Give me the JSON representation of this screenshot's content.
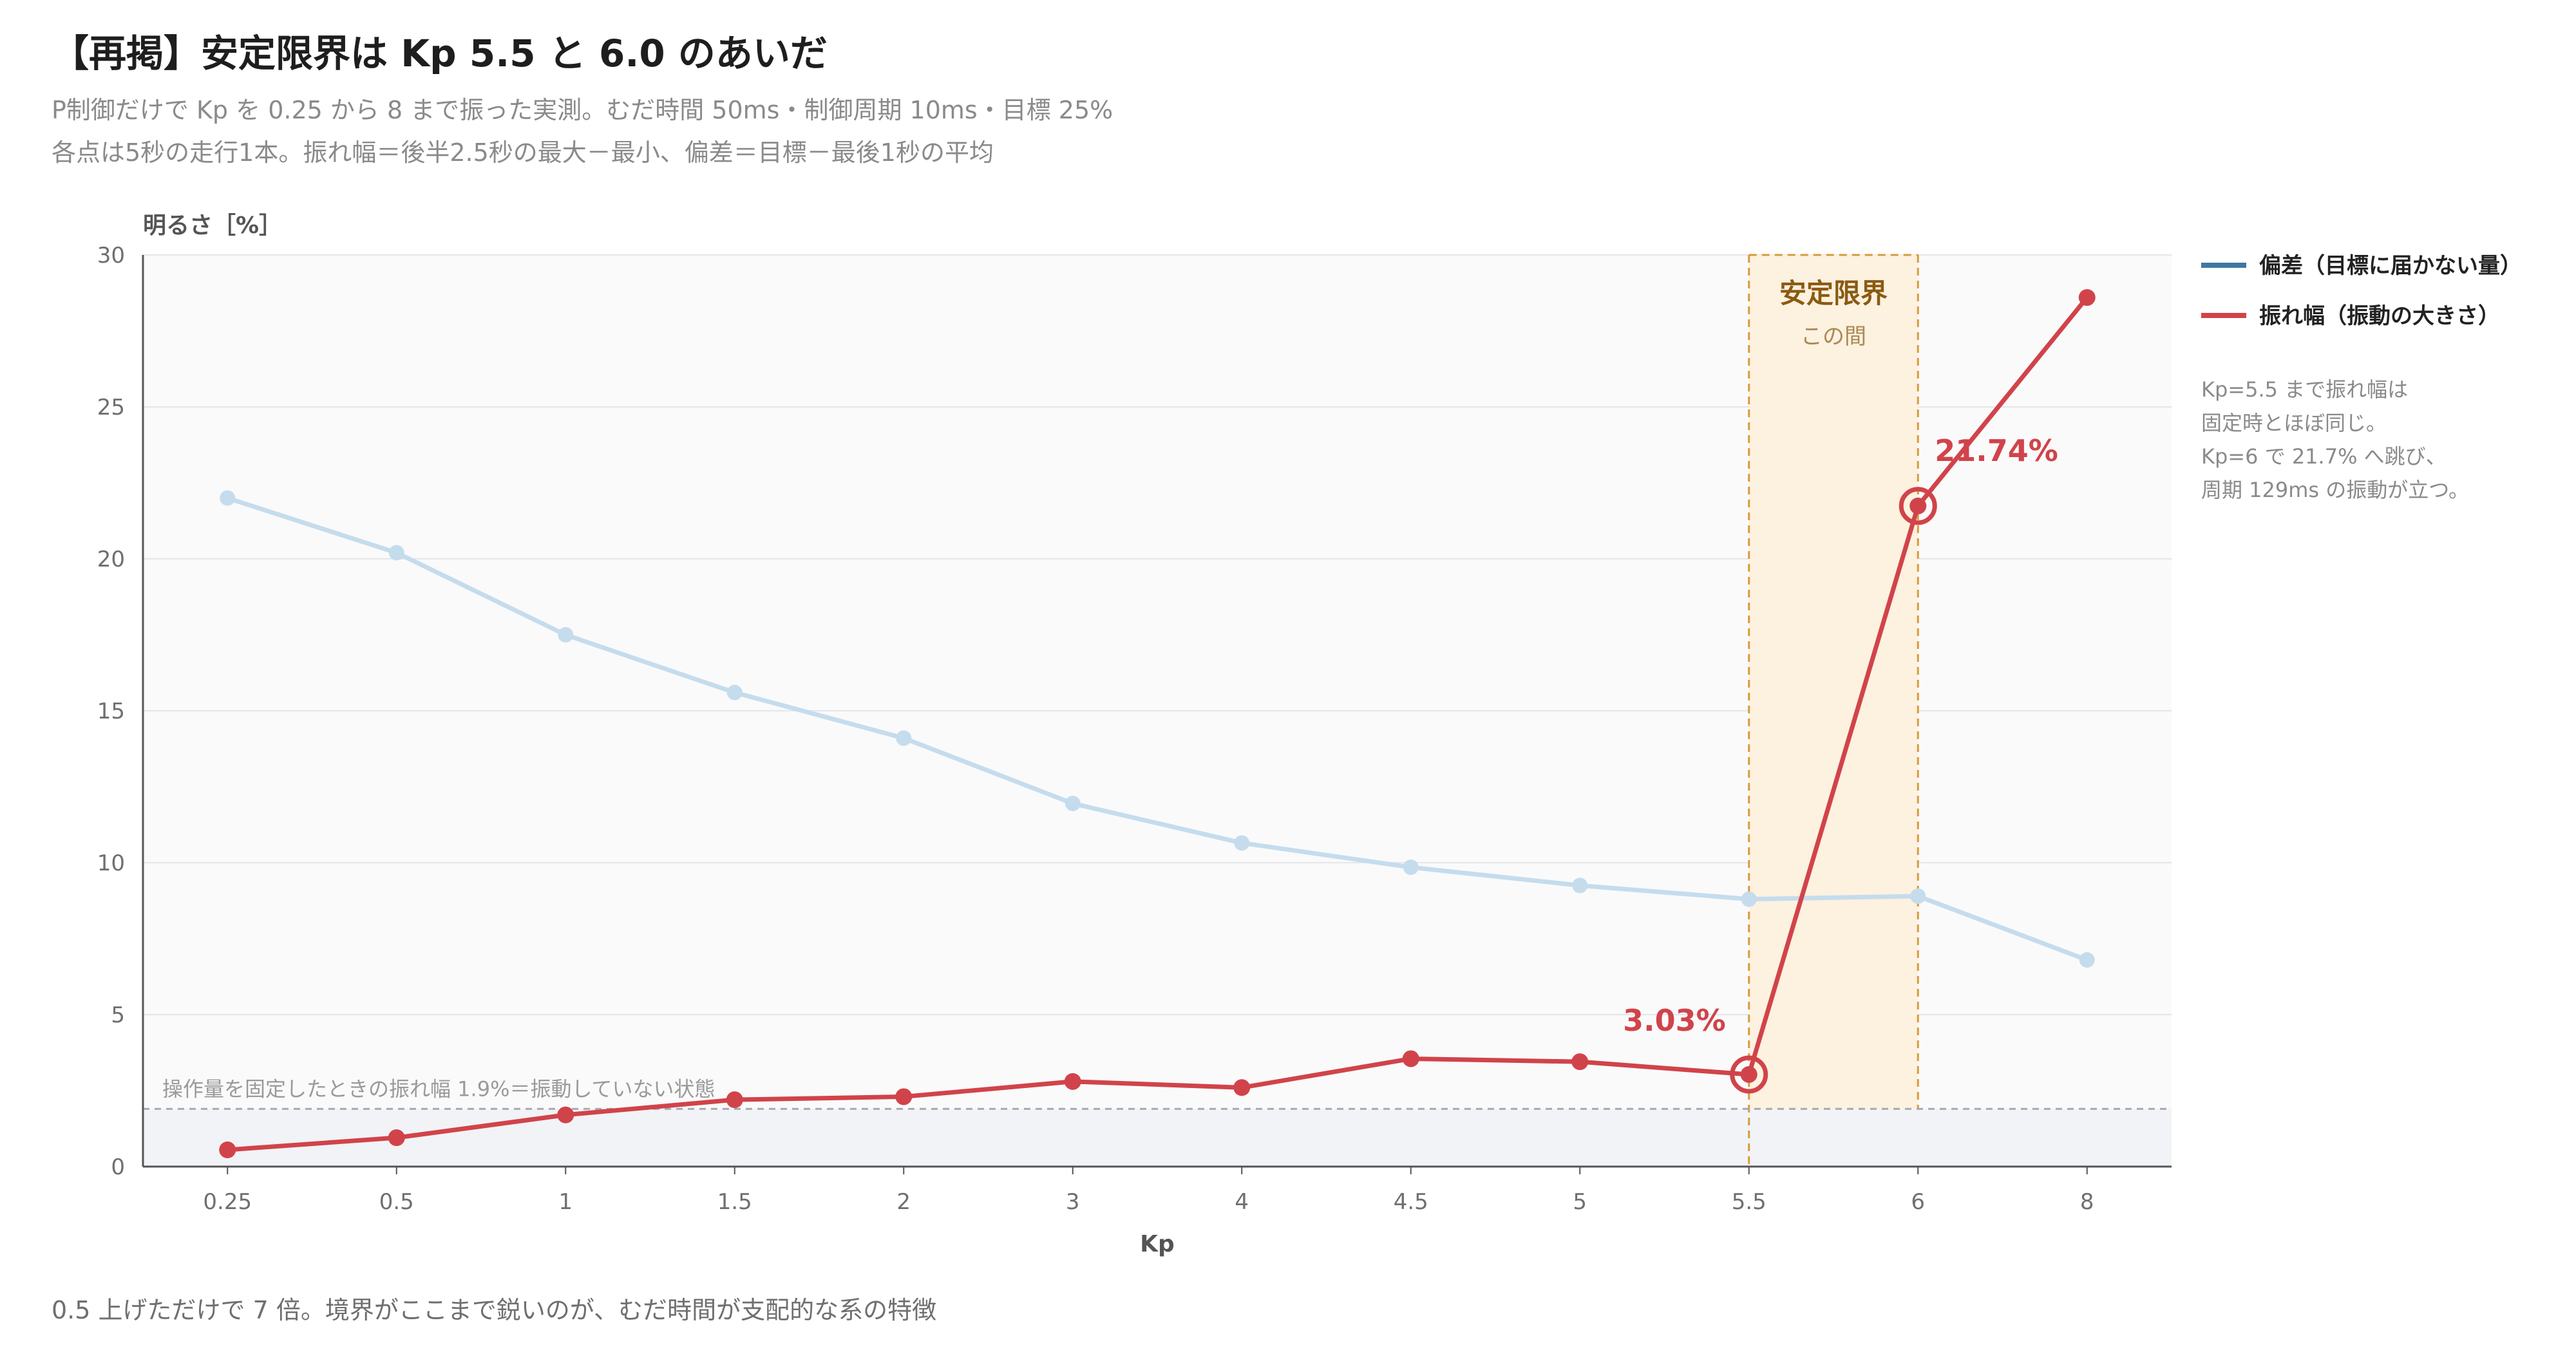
{
  "header": {
    "title": "【再掲】安定限界は Kp 5.5 と 6.0 のあいだ",
    "subtitle_line1": "P制御だけで Kp を 0.25 から 8 まで振った実測。むだ時間 50ms・制御周期 10ms・目標 25%",
    "subtitle_line2": "各点は5秒の走行1本。振れ幅＝後半2.5秒の最大－最小、偏差＝目標－最後1秒の平均"
  },
  "footer": {
    "note": "0.5 上げただけで 7 倍。境界がここまで鋭いのが、むだ時間が支配的な系の特徴"
  },
  "chart_data": {
    "type": "line",
    "categories": [
      "0.25",
      "0.5",
      "1",
      "1.5",
      "2",
      "3",
      "4",
      "4.5",
      "5",
      "5.5",
      "6",
      "8"
    ],
    "xlabel": "Kp",
    "ylabel": "明るさ［%］",
    "ylim": [
      0,
      30
    ],
    "yticks": [
      0,
      5,
      10,
      15,
      20,
      25,
      30
    ],
    "grid": true,
    "legend_placement": "right",
    "series": [
      {
        "name": "偏差（目標に届かない量）",
        "color": "#3e77a3",
        "values": [
          22.0,
          20.2,
          17.5,
          15.6,
          14.1,
          11.95,
          10.65,
          9.85,
          9.25,
          8.8,
          8.9,
          6.8
        ]
      },
      {
        "name": "振れ幅（振動の大きさ）",
        "color": "#d1434a",
        "values": [
          0.55,
          0.95,
          1.7,
          2.2,
          2.3,
          2.8,
          2.6,
          3.55,
          3.45,
          3.03,
          21.74,
          28.6
        ]
      }
    ],
    "reference_line": {
      "value": 1.9,
      "label": "操作量を固定したときの振れ幅 1.9%＝振動していない状態"
    },
    "highlight_band": {
      "from": "5.5",
      "to": "6",
      "title": "安定限界",
      "subtitle": "この間"
    },
    "annotations": [
      {
        "category": "5.5",
        "series": 1,
        "value": 3.03,
        "text": "3.03%"
      },
      {
        "category": "6",
        "series": 1,
        "value": 21.74,
        "text": "21.74%"
      }
    ],
    "side_note": [
      "Kp=5.5 まで振れ幅は",
      "固定時とほぼ同じ。",
      "Kp=6 で 21.7% へ跳び、",
      "周期 129ms の振動が立つ。"
    ],
    "colors": {
      "deviation_light": "#c5dced",
      "amplitude": "#d1434a",
      "band_fill": "#fdf1df",
      "band_border": "#d99a3a"
    }
  }
}
